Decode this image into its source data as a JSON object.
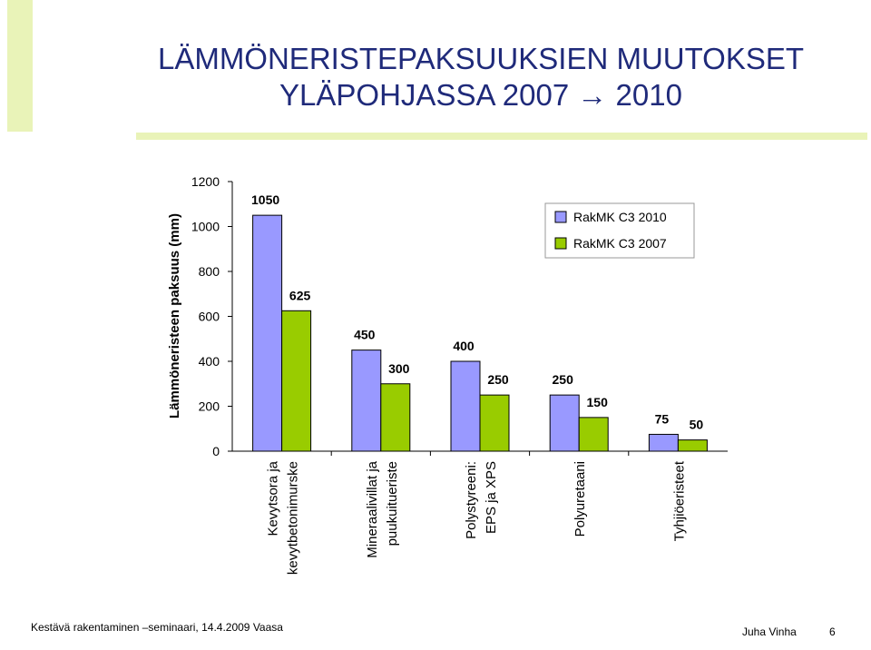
{
  "title": {
    "line1": "LÄMMÖNERISTEPAKSUUKSIEN MUUTOKSET",
    "line2": "YLÄPOHJASSA 2007 → 2010"
  },
  "footer": {
    "left": "Kestävä rakentaminen –seminaari, 14.4.2009 Vaasa",
    "author": "Juha Vinha",
    "page": "6"
  },
  "chart_data": {
    "type": "bar",
    "ylabel": "Lämmöneristeen paksuus (mm)",
    "ylim": [
      0,
      1200
    ],
    "yticks": [
      0,
      200,
      400,
      600,
      800,
      1000,
      1200
    ],
    "grid": false,
    "legend_position": "top-right",
    "categories": [
      [
        "Kevytsora ja",
        "kevytbetonimurske"
      ],
      [
        "Mineraalivillat ja",
        "puukuitueriste"
      ],
      [
        "Polystyreeni:",
        "EPS ja XPS"
      ],
      [
        "Polyuretaani"
      ],
      [
        "Tyhjiöeristeet"
      ]
    ],
    "series": [
      {
        "name": "RakMK C3 2010",
        "color": "#9999ff",
        "values": [
          1050,
          450,
          400,
          250,
          75
        ]
      },
      {
        "name": "RakMK C3 2007",
        "color": "#99cc00",
        "values": [
          625,
          300,
          250,
          150,
          50
        ]
      }
    ]
  }
}
